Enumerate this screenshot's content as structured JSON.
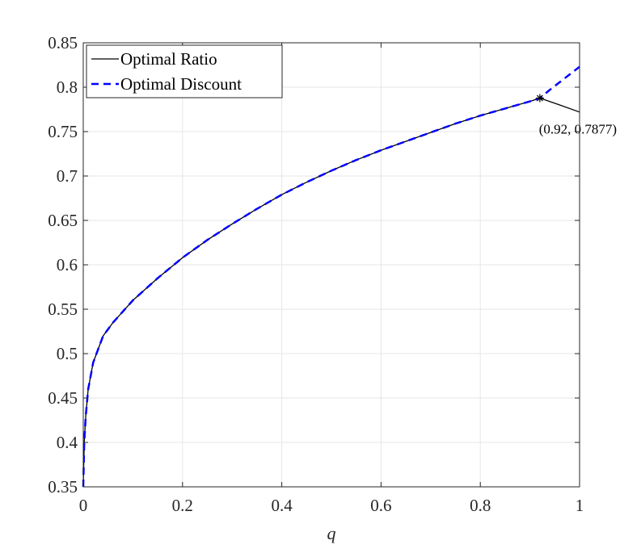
{
  "chart_data": {
    "type": "line",
    "title": "",
    "xlabel": "q",
    "ylabel": "",
    "xlim": [
      0,
      1
    ],
    "ylim": [
      0.35,
      0.85
    ],
    "xticks": [
      0,
      0.2,
      0.4,
      0.6,
      0.8,
      1
    ],
    "xtick_labels": [
      "0",
      "0.2",
      "0.4",
      "0.6",
      "0.8",
      "1"
    ],
    "yticks": [
      0.35,
      0.4,
      0.45,
      0.5,
      0.55,
      0.6,
      0.65,
      0.7,
      0.75,
      0.8,
      0.85
    ],
    "ytick_labels": [
      "0.35",
      "0.4",
      "0.45",
      "0.5",
      "0.55",
      "0.6",
      "0.65",
      "0.7",
      "0.75",
      "0.8",
      "0.85"
    ],
    "grid": true,
    "legend_position": "top-left",
    "series": [
      {
        "name": "Optimal Ratio",
        "color": "#000000",
        "style": "solid",
        "x": [
          0,
          0.002,
          0.005,
          0.01,
          0.02,
          0.04,
          0.06,
          0.1,
          0.15,
          0.2,
          0.25,
          0.3,
          0.35,
          0.4,
          0.45,
          0.5,
          0.55,
          0.6,
          0.65,
          0.7,
          0.75,
          0.8,
          0.85,
          0.9,
          0.92,
          0.96,
          1.0
        ],
        "y": [
          0.35,
          0.4,
          0.43,
          0.46,
          0.49,
          0.52,
          0.535,
          0.56,
          0.585,
          0.608,
          0.628,
          0.646,
          0.663,
          0.679,
          0.693,
          0.706,
          0.718,
          0.729,
          0.739,
          0.749,
          0.759,
          0.768,
          0.776,
          0.784,
          0.7877,
          0.78,
          0.772
        ]
      },
      {
        "name": "Optimal Discount",
        "color": "#0000ff",
        "style": "dashed",
        "x": [
          0,
          0.002,
          0.005,
          0.01,
          0.02,
          0.04,
          0.06,
          0.1,
          0.15,
          0.2,
          0.25,
          0.3,
          0.35,
          0.4,
          0.45,
          0.5,
          0.55,
          0.6,
          0.65,
          0.7,
          0.75,
          0.8,
          0.85,
          0.9,
          0.92,
          0.94,
          0.97,
          1.0
        ],
        "y": [
          0.35,
          0.4,
          0.43,
          0.46,
          0.49,
          0.52,
          0.535,
          0.56,
          0.585,
          0.608,
          0.628,
          0.646,
          0.663,
          0.679,
          0.693,
          0.706,
          0.718,
          0.729,
          0.739,
          0.749,
          0.759,
          0.768,
          0.776,
          0.784,
          0.7877,
          0.797,
          0.81,
          0.823
        ]
      }
    ],
    "annotations": [
      {
        "x": 0.92,
        "y": 0.7877,
        "label": "(0.92, 0.7877)",
        "marker": "asterisk"
      }
    ]
  }
}
